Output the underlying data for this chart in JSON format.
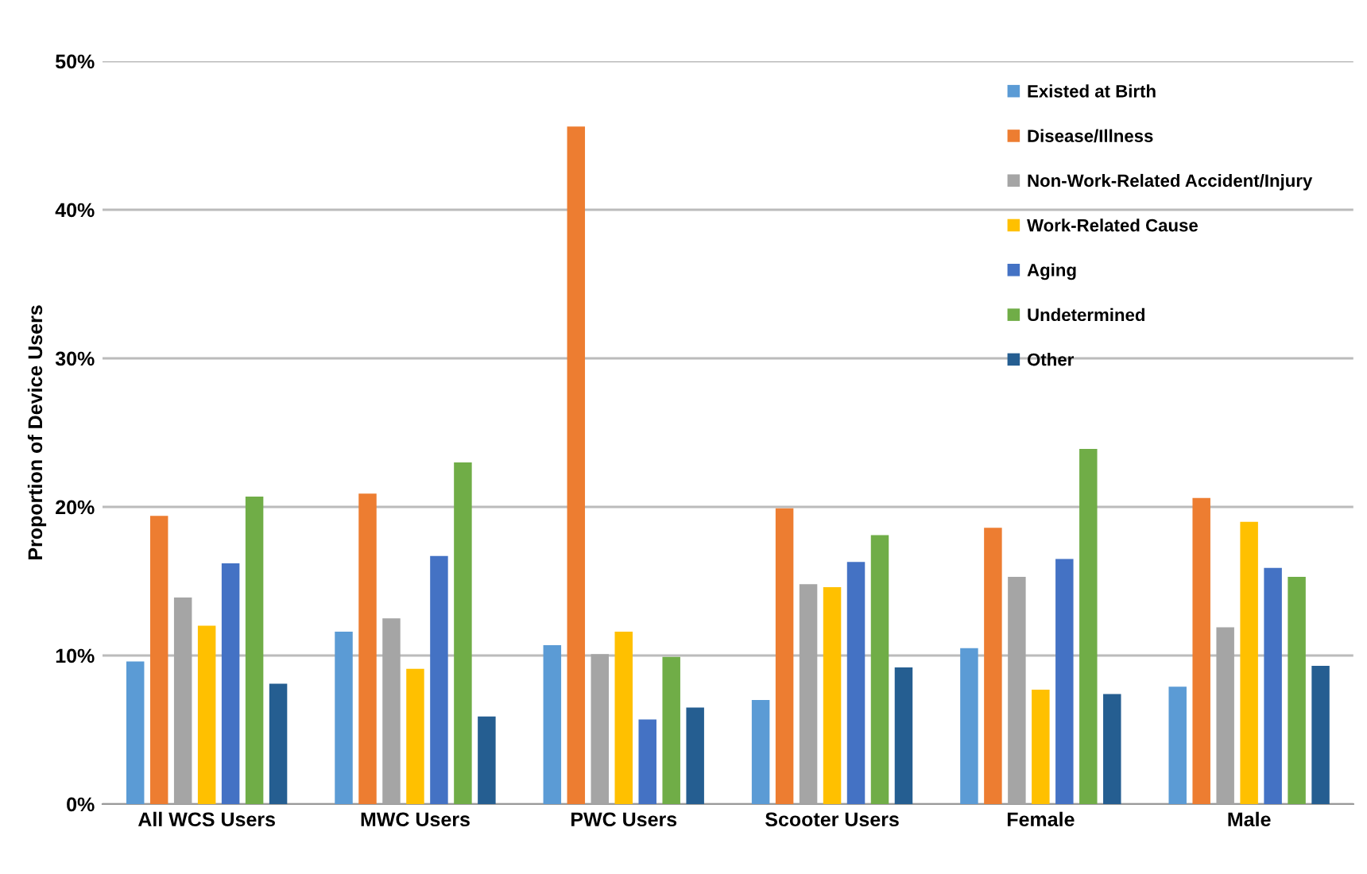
{
  "chart_data": {
    "type": "bar",
    "ylabel": "Proportion of Device Users",
    "categories": [
      "All WCS Users",
      "MWC Users",
      "PWC Users",
      "Scooter Users",
      "Female",
      "Male"
    ],
    "series": [
      {
        "name": "Existed at Birth",
        "color": "#5b9bd5",
        "values": [
          9.6,
          11.6,
          10.7,
          7.0,
          10.5,
          7.9
        ]
      },
      {
        "name": "Disease/Illness",
        "color": "#ed7d31",
        "values": [
          19.4,
          20.9,
          45.6,
          19.9,
          18.6,
          20.6
        ]
      },
      {
        "name": "Non-Work-Related Accident/Injury",
        "color": "#a5a5a5",
        "values": [
          13.9,
          12.5,
          10.1,
          14.8,
          15.3,
          11.9
        ]
      },
      {
        "name": "Work-Related Cause",
        "color": "#ffc000",
        "values": [
          12.0,
          9.1,
          11.6,
          14.6,
          7.7,
          19.0
        ]
      },
      {
        "name": "Aging",
        "color": "#4472c4",
        "values": [
          16.2,
          16.7,
          5.7,
          16.3,
          16.5,
          15.9
        ]
      },
      {
        "name": "Undetermined",
        "color": "#70ad47",
        "values": [
          20.7,
          23.0,
          9.9,
          18.1,
          23.9,
          15.3
        ]
      },
      {
        "name": "Other",
        "color": "#255e91",
        "values": [
          8.1,
          5.9,
          6.5,
          9.2,
          7.4,
          9.3
        ]
      }
    ],
    "ylim": [
      0,
      50
    ],
    "yticks": [
      {
        "value": 0,
        "label": "0%"
      },
      {
        "value": 10,
        "label": "10%"
      },
      {
        "value": 20,
        "label": "20%"
      },
      {
        "value": 30,
        "label": "30%"
      },
      {
        "value": 40,
        "label": "40%"
      },
      {
        "value": 50,
        "label": "50%"
      }
    ],
    "grid": "y",
    "legend": "top right"
  }
}
